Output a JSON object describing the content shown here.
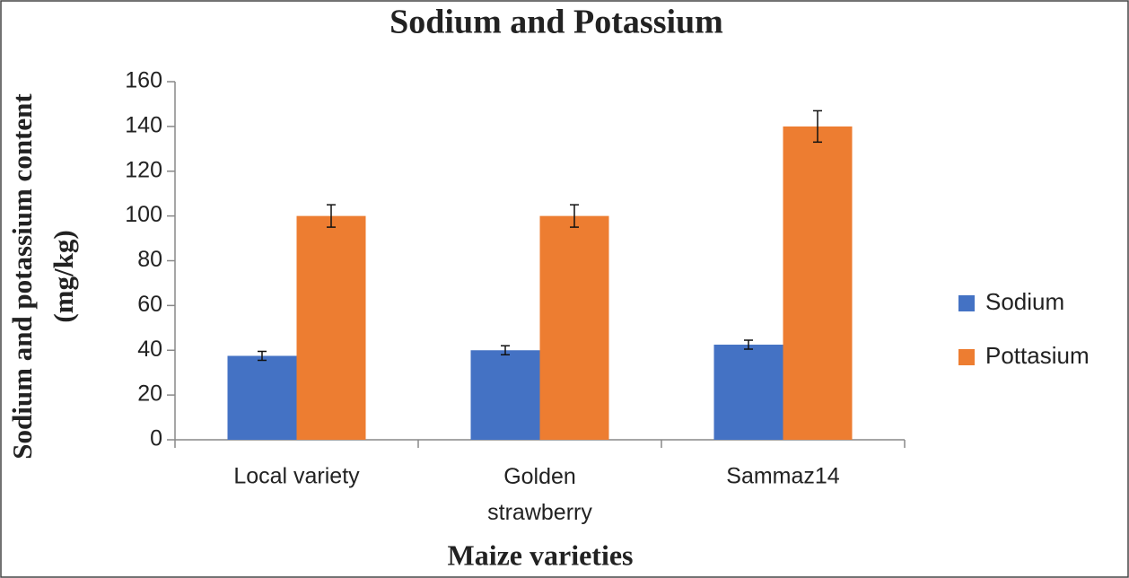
{
  "chart_data": {
    "type": "bar",
    "title": "Sodium and Potassium",
    "ylabel": [
      "Sodium and potassium content",
      "(mg/kg)"
    ],
    "xlabel": "Maize varieties",
    "categories": [
      "Local variety",
      "Golden strawberry",
      "Sammaz14"
    ],
    "series": [
      {
        "name": "Sodium",
        "color": "#4472c4",
        "values": [
          37.5,
          40,
          42.5
        ],
        "errors": [
          2,
          2,
          2
        ]
      },
      {
        "name": "Pottasium",
        "color": "#ed7d31",
        "values": [
          100,
          100,
          140
        ],
        "errors": [
          5,
          5,
          7
        ]
      }
    ],
    "ylim": [
      0,
      160
    ],
    "yticks": [
      0,
      20,
      40,
      60,
      80,
      100,
      120,
      140,
      160
    ],
    "grid": false,
    "legend": "right"
  }
}
